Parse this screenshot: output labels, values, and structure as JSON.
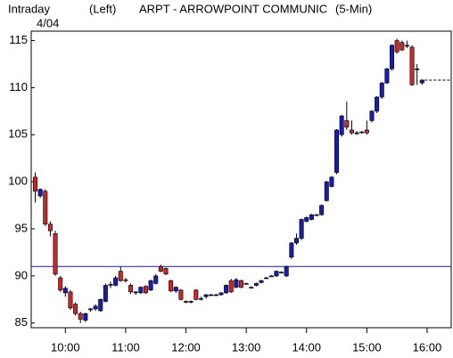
{
  "chart_data": {
    "type": "candlestick",
    "title": "ARPT - ARROWPOINT COMMUNIC",
    "header": {
      "mode": "Intraday",
      "date": "4/04",
      "axis_side": "(Left)",
      "interval": "(5-Min)"
    },
    "x": [
      570,
      575,
      580,
      585,
      590,
      595,
      600,
      605,
      610,
      615,
      620,
      625,
      630,
      635,
      640,
      645,
      650,
      655,
      660,
      665,
      670,
      675,
      680,
      685,
      690,
      695,
      700,
      705,
      710,
      715,
      720,
      725,
      730,
      735,
      740,
      745,
      750,
      755,
      760,
      765,
      770,
      775,
      780,
      785,
      790,
      795,
      800,
      805,
      810,
      815,
      820,
      825,
      830,
      835,
      840,
      845,
      850,
      855,
      860,
      865,
      870,
      875,
      880,
      885,
      890,
      895,
      900,
      905,
      910,
      915,
      920,
      925,
      930,
      935,
      940,
      945,
      950,
      955
    ],
    "open": [
      100.5,
      98.5,
      99,
      95.5,
      94.5,
      89.8,
      88.2,
      88.3,
      87,
      86,
      85.3,
      86.4,
      86.5,
      86.3,
      87.3,
      89,
      89,
      90.5,
      89.6,
      89,
      88.2,
      88.2,
      88.9,
      88.5,
      89.2,
      91,
      90.8,
      89.5,
      88.4,
      88.5,
      87.3,
      87.2,
      88.5,
      87.6,
      87.8,
      88,
      88,
      88,
      88.2,
      89.5,
      88.8,
      89.5,
      89.2,
      88.8,
      89,
      89.3,
      89.8,
      90,
      90,
      90.4,
      90,
      92,
      93.5,
      94,
      95.8,
      96,
      96.5,
      96.5,
      98,
      99.5,
      101,
      105,
      106.5,
      105.5,
      105.2,
      105.3,
      105.5,
      106.5,
      107.5,
      109,
      110.5,
      112,
      115,
      114.8,
      114.5,
      114.3,
      112,
      110.5
    ],
    "high": [
      101,
      99.3,
      99.2,
      95.8,
      94.8,
      90,
      88.9,
      88.5,
      87.2,
      86.2,
      86.1,
      86.6,
      87,
      87.6,
      89.2,
      89.4,
      90,
      91,
      89.8,
      89.2,
      88.4,
      88.9,
      89,
      89.6,
      90.2,
      91.2,
      90.9,
      89.6,
      88.9,
      88.6,
      87.4,
      87.4,
      88.6,
      87.8,
      88.1,
      88.1,
      88.1,
      88.3,
      89.1,
      89.7,
      89.8,
      89.6,
      89.3,
      88.9,
      89.3,
      89.6,
      89.9,
      90.1,
      90.6,
      90.5,
      91.1,
      93.6,
      94.5,
      96.1,
      96.3,
      96.6,
      96.6,
      97.6,
      100.1,
      100.6,
      105.6,
      107.1,
      108.5,
      106.5,
      105.4,
      105.4,
      106.5,
      107.6,
      109.1,
      110.6,
      112.1,
      114.6,
      115.2,
      115,
      115,
      114.5,
      112.5,
      110.9
    ],
    "low": [
      97.8,
      98.3,
      95.3,
      94.2,
      90,
      88.3,
      87.8,
      86.4,
      85.8,
      85,
      85.1,
      86.2,
      86.3,
      86.2,
      87.2,
      88.7,
      88.9,
      89.4,
      89.3,
      88.1,
      88,
      88.1,
      88.1,
      88.4,
      89.1,
      90.4,
      90.1,
      88.3,
      88.2,
      87.4,
      87.1,
      87.1,
      87.4,
      87.4,
      87.6,
      87.9,
      87.9,
      87.9,
      88.1,
      88.2,
      88.7,
      88.7,
      89.1,
      88.7,
      88.9,
      89.2,
      89.7,
      89.9,
      89.9,
      90.3,
      89.9,
      91.8,
      93.3,
      93.8,
      95.7,
      95.9,
      96.4,
      96.4,
      97.9,
      99.4,
      100.8,
      104.8,
      105.5,
      105,
      105,
      105.1,
      105,
      106.3,
      107.3,
      108.8,
      110.4,
      111.8,
      113.6,
      113.9,
      114.2,
      110.2,
      110.3,
      110.3
    ],
    "close": [
      99,
      99.2,
      95.5,
      94.8,
      90.2,
      88.5,
      88.7,
      86.6,
      86,
      85.4,
      86,
      86.5,
      86.8,
      87.5,
      89,
      89.1,
      89.8,
      89.5,
      89.5,
      88.3,
      88.3,
      88.8,
      88.2,
      89.5,
      90,
      90.5,
      90.2,
      88.4,
      88.8,
      87.5,
      87.2,
      87.3,
      87.5,
      87.6,
      88,
      88,
      88,
      88.2,
      89,
      88.3,
      89.6,
      88.8,
      89.2,
      88.8,
      89.2,
      89.5,
      89.8,
      90,
      90.5,
      90.4,
      91,
      93.5,
      94,
      96,
      96.2,
      96.5,
      96.5,
      97.5,
      100,
      100.5,
      105.5,
      107,
      105.8,
      105.2,
      105.2,
      105.3,
      105.2,
      107.5,
      109,
      110.5,
      112,
      114.5,
      113.8,
      114,
      114.5,
      110.3,
      112,
      110.8
    ],
    "up_color": "#1c1caa",
    "down_color": "#c42a2a",
    "reference_line": 91,
    "xlim": [
      566,
      984
    ],
    "xticks": [
      {
        "value": 600,
        "label": "10:00"
      },
      {
        "value": 660,
        "label": "11:00"
      },
      {
        "value": 720,
        "label": "12:00"
      },
      {
        "value": 780,
        "label": "13:00"
      },
      {
        "value": 840,
        "label": "14:00"
      },
      {
        "value": 900,
        "label": "15:00"
      },
      {
        "value": 960,
        "label": "16:00"
      }
    ],
    "ylim": [
      84.5,
      116
    ],
    "yticks": [
      85,
      90,
      95,
      100,
      105,
      110,
      115
    ]
  }
}
